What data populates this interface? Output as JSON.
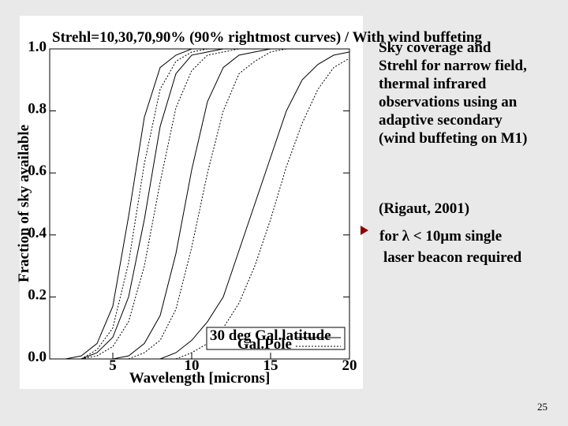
{
  "chart_data": {
    "type": "line",
    "title": "Strehl=10,30,70,90% (90% rightmost curves) / With wind buffeting",
    "x_label": "Wavelength [microns]",
    "y_label": "Fraction of sky available",
    "x": [
      2,
      3,
      4,
      5,
      6,
      7,
      8,
      9,
      10,
      11,
      12,
      13,
      14,
      15,
      16,
      17,
      18,
      19,
      20
    ],
    "xlim": [
      1,
      20
    ],
    "xticks": [
      5,
      10,
      15,
      20
    ],
    "ylim": [
      0,
      1
    ],
    "yticks": [
      {
        "value": 0,
        "label": "0.0"
      },
      0.2,
      0.4,
      0.6,
      0.8,
      {
        "value": 1,
        "label": "1.0"
      }
    ],
    "legend": [
      {
        "label": "30 deg Gal.latitude",
        "dash": "solid"
      },
      {
        "label": "Gal.Pole",
        "dash": "dotted"
      }
    ],
    "series": [
      {
        "dash": "solid",
        "color": "#000000",
        "values": [
          0,
          0.01,
          0.05,
          0.17,
          0.46,
          0.78,
          0.94,
          0.98,
          1,
          1,
          1,
          1,
          1,
          1,
          1,
          1,
          1,
          1,
          1
        ]
      },
      {
        "dash": "dotted",
        "color": "#000000",
        "values": [
          0,
          0,
          0.03,
          0.1,
          0.31,
          0.63,
          0.87,
          0.96,
          0.99,
          1,
          1,
          1,
          1,
          1,
          1,
          1,
          1,
          1,
          1
        ]
      },
      {
        "dash": "solid",
        "color": "#000000",
        "values": [
          0,
          0,
          0.02,
          0.07,
          0.2,
          0.45,
          0.75,
          0.92,
          0.98,
          0.99,
          1,
          1,
          1,
          1,
          1,
          1,
          1,
          1,
          1
        ]
      },
      {
        "dash": "dotted",
        "color": "#000000",
        "values": [
          0,
          0,
          0.01,
          0.04,
          0.12,
          0.3,
          0.57,
          0.81,
          0.93,
          0.98,
          0.99,
          1,
          1,
          1,
          1,
          1,
          1,
          1,
          1
        ]
      },
      {
        "dash": "solid",
        "color": "#000000",
        "values": [
          0,
          0,
          0,
          0,
          0.01,
          0.05,
          0.14,
          0.34,
          0.61,
          0.83,
          0.94,
          0.98,
          0.99,
          1,
          1,
          1,
          1,
          1,
          1
        ]
      },
      {
        "dash": "dotted",
        "color": "#000000",
        "values": [
          0,
          0,
          0,
          0,
          0,
          0.02,
          0.06,
          0.16,
          0.36,
          0.6,
          0.8,
          0.92,
          0.96,
          0.99,
          1,
          1,
          1,
          1,
          1
        ]
      },
      {
        "dash": "solid",
        "color": "#000000",
        "values": [
          0,
          0,
          0,
          0,
          0,
          0,
          0,
          0.02,
          0.06,
          0.12,
          0.2,
          0.35,
          0.5,
          0.65,
          0.8,
          0.9,
          0.95,
          0.98,
          0.99
        ]
      },
      {
        "dash": "dotted",
        "color": "#000000",
        "values": [
          0,
          0,
          0,
          0,
          0,
          0,
          0,
          0,
          0.02,
          0.05,
          0.1,
          0.18,
          0.3,
          0.45,
          0.62,
          0.76,
          0.87,
          0.94,
          0.97
        ]
      }
    ]
  },
  "slide": {
    "description": [
      "Sky coverage and",
      "Strehl for narrow field,",
      "thermal infrared",
      "observations using an",
      "adaptive secondary",
      "(wind buffeting on M1)"
    ],
    "citation": "(Rigaut, 2001)",
    "bullet": [
      "for λ < 10μm single",
      "laser beacon required"
    ],
    "page_number": "25"
  }
}
